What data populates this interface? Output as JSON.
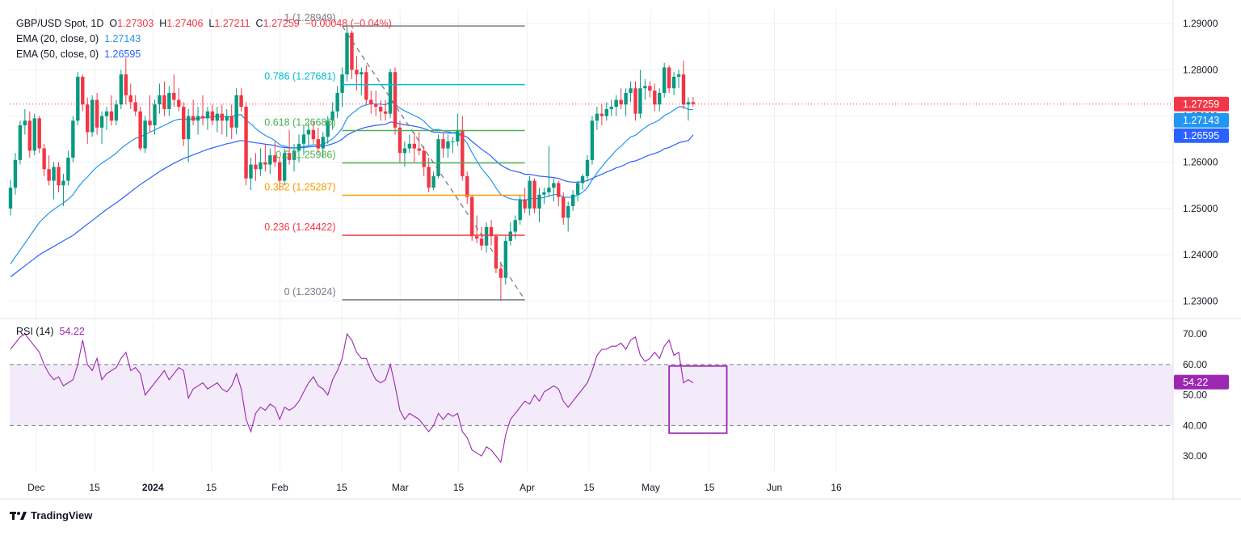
{
  "header": {
    "symbol": "GBP/USD Spot, 1D",
    "o_label": "O",
    "o": "1.27303",
    "h_label": "H",
    "h": "1.27406",
    "l_label": "L",
    "l": "1.27211",
    "c_label": "C",
    "c": "1.27259",
    "change": "−0.00048 (−0.04%)",
    "ema20_label": "EMA (20, close, 0)",
    "ema20": "1.27143",
    "ema50_label": "EMA (50, close, 0)",
    "ema50": "1.26595",
    "rsi_label": "RSI (14)",
    "rsi": "54.22"
  },
  "branding": {
    "name": "TradingView"
  },
  "colors": {
    "up": "#089981",
    "down": "#f23645",
    "ema20": "#2196f3",
    "ema50": "#2962ff",
    "rsi": "#9c27b0",
    "grid": "#eef0f3"
  },
  "chart_data": {
    "type": "candlestick",
    "title": "GBP/USD Spot, 1D",
    "price_axis": {
      "ticks": [
        "1.29000",
        "1.28000",
        "1.27000",
        "1.26000",
        "1.25000",
        "1.24000",
        "1.23000"
      ],
      "values": [
        1.29,
        1.28,
        1.27,
        1.26,
        1.25,
        1.24,
        1.23
      ],
      "ylim": [
        1.2262,
        1.293
      ]
    },
    "time_axis": {
      "labels": [
        "Dec",
        "15",
        "2024",
        "15",
        "Feb",
        "15",
        "Mar",
        "15",
        "Apr",
        "15",
        "May",
        "15",
        "Jun",
        "16"
      ]
    },
    "price_badges": [
      {
        "label": "1.27259",
        "value": 1.27259,
        "color": "#f23645"
      },
      {
        "label": "1.27143",
        "value": 1.27143,
        "color": "#2196f3"
      },
      {
        "label": "1.26595",
        "value": 1.26595,
        "color": "#2962ff"
      }
    ],
    "fibonacci": [
      {
        "label": "1 (1.28949)",
        "value": 1.28949,
        "color": "#787b86"
      },
      {
        "label": "0.786 (1.27681)",
        "value": 1.27681,
        "color": "#00bcd4"
      },
      {
        "label": "0.618 (1.26686)",
        "value": 1.26686,
        "color": "#4caf50"
      },
      {
        "label": "0.5 (1.25986)",
        "value": 1.25986,
        "color": "#4caf50"
      },
      {
        "label": "0.382 (1.25287)",
        "value": 1.25287,
        "color": "#ff9800"
      },
      {
        "label": "0.236 (1.24422)",
        "value": 1.24422,
        "color": "#f23645"
      },
      {
        "label": "0 (1.23024)",
        "value": 1.23024,
        "color": "#787b86"
      }
    ],
    "candles": [
      [
        1.25,
        1.2562,
        1.2485,
        1.2545
      ],
      [
        1.2545,
        1.262,
        1.253,
        1.2605
      ],
      [
        1.2605,
        1.269,
        1.2595,
        1.268
      ],
      [
        1.268,
        1.2715,
        1.266,
        1.269
      ],
      [
        1.269,
        1.271,
        1.261,
        1.2625
      ],
      [
        1.2625,
        1.2705,
        1.2615,
        1.2695
      ],
      [
        1.2695,
        1.27,
        1.262,
        1.263
      ],
      [
        1.263,
        1.264,
        1.257,
        1.2585
      ],
      [
        1.2585,
        1.2615,
        1.255,
        1.256
      ],
      [
        1.256,
        1.26,
        1.252,
        1.259
      ],
      [
        1.259,
        1.26,
        1.2535,
        1.255
      ],
      [
        1.255,
        1.2575,
        1.2505,
        1.256
      ],
      [
        1.256,
        1.2625,
        1.255,
        1.261
      ],
      [
        1.261,
        1.27,
        1.26,
        1.269
      ],
      [
        1.269,
        1.2795,
        1.268,
        1.2785
      ],
      [
        1.2785,
        1.279,
        1.271,
        1.2725
      ],
      [
        1.2725,
        1.274,
        1.264,
        1.2665
      ],
      [
        1.2665,
        1.2745,
        1.2655,
        1.2735
      ],
      [
        1.2735,
        1.275,
        1.266,
        1.2675
      ],
      [
        1.2675,
        1.271,
        1.264,
        1.27
      ],
      [
        1.27,
        1.272,
        1.267,
        1.271
      ],
      [
        1.271,
        1.2745,
        1.268,
        1.269
      ],
      [
        1.269,
        1.2735,
        1.268,
        1.2725
      ],
      [
        1.2725,
        1.28,
        1.2715,
        1.279
      ],
      [
        1.279,
        1.2825,
        1.2725,
        1.2745
      ],
      [
        1.2745,
        1.277,
        1.2715,
        1.273
      ],
      [
        1.273,
        1.2745,
        1.27,
        1.271
      ],
      [
        1.271,
        1.272,
        1.2625,
        1.263
      ],
      [
        1.263,
        1.27,
        1.262,
        1.269
      ],
      [
        1.269,
        1.2745,
        1.2665,
        1.268
      ],
      [
        1.268,
        1.2735,
        1.266,
        1.2725
      ],
      [
        1.2725,
        1.277,
        1.2705,
        1.2745
      ],
      [
        1.2745,
        1.2775,
        1.27,
        1.2715
      ],
      [
        1.2715,
        1.2765,
        1.27,
        1.275
      ],
      [
        1.275,
        1.279,
        1.272,
        1.2735
      ],
      [
        1.2735,
        1.276,
        1.271,
        1.272
      ],
      [
        1.272,
        1.273,
        1.2635,
        1.265
      ],
      [
        1.265,
        1.2715,
        1.26,
        1.27
      ],
      [
        1.27,
        1.2735,
        1.268,
        1.269
      ],
      [
        1.269,
        1.272,
        1.266,
        1.27
      ],
      [
        1.27,
        1.2745,
        1.268,
        1.2695
      ],
      [
        1.2695,
        1.272,
        1.267,
        1.271
      ],
      [
        1.271,
        1.2725,
        1.268,
        1.269
      ],
      [
        1.269,
        1.272,
        1.2665,
        1.2705
      ],
      [
        1.2705,
        1.2725,
        1.266,
        1.269
      ],
      [
        1.269,
        1.2715,
        1.2655,
        1.27
      ],
      [
        1.27,
        1.2725,
        1.265,
        1.2675
      ],
      [
        1.2675,
        1.276,
        1.266,
        1.2745
      ],
      [
        1.2745,
        1.276,
        1.271,
        1.272
      ],
      [
        1.272,
        1.273,
        1.255,
        1.2565
      ],
      [
        1.2565,
        1.261,
        1.254,
        1.2595
      ],
      [
        1.2595,
        1.262,
        1.256,
        1.2585
      ],
      [
        1.2585,
        1.263,
        1.257,
        1.26
      ],
      [
        1.26,
        1.264,
        1.258,
        1.2595
      ],
      [
        1.2595,
        1.263,
        1.2575,
        1.2615
      ],
      [
        1.2615,
        1.2645,
        1.259,
        1.26
      ],
      [
        1.26,
        1.261,
        1.254,
        1.256
      ],
      [
        1.256,
        1.263,
        1.255,
        1.262
      ],
      [
        1.262,
        1.267,
        1.2595,
        1.2605
      ],
      [
        1.2605,
        1.264,
        1.258,
        1.2625
      ],
      [
        1.2625,
        1.266,
        1.26,
        1.264
      ],
      [
        1.264,
        1.268,
        1.2615,
        1.266
      ],
      [
        1.266,
        1.2685,
        1.2635,
        1.267
      ],
      [
        1.267,
        1.269,
        1.264,
        1.265
      ],
      [
        1.265,
        1.2675,
        1.262,
        1.263
      ],
      [
        1.263,
        1.2665,
        1.261,
        1.2655
      ],
      [
        1.2655,
        1.27,
        1.264,
        1.269
      ],
      [
        1.269,
        1.273,
        1.267,
        1.271
      ],
      [
        1.271,
        1.2765,
        1.2695,
        1.275
      ],
      [
        1.275,
        1.2805,
        1.272,
        1.279
      ],
      [
        1.279,
        1.2895,
        1.2775,
        1.288
      ],
      [
        1.288,
        1.2885,
        1.278,
        1.28
      ],
      [
        1.28,
        1.283,
        1.2755,
        1.279
      ],
      [
        1.279,
        1.2805,
        1.2745,
        1.2795
      ],
      [
        1.2795,
        1.281,
        1.2725,
        1.2735
      ],
      [
        1.2735,
        1.2755,
        1.2705,
        1.2725
      ],
      [
        1.2725,
        1.2755,
        1.27,
        1.272
      ],
      [
        1.272,
        1.2735,
        1.269,
        1.271
      ],
      [
        1.271,
        1.2735,
        1.269,
        1.2705
      ],
      [
        1.2705,
        1.2802,
        1.2695,
        1.2795
      ],
      [
        1.2795,
        1.2805,
        1.266,
        1.2675
      ],
      [
        1.2675,
        1.269,
        1.26,
        1.262
      ],
      [
        1.262,
        1.2645,
        1.259,
        1.263
      ],
      [
        1.263,
        1.266,
        1.262,
        1.264
      ],
      [
        1.264,
        1.2665,
        1.26,
        1.263
      ],
      [
        1.263,
        1.2665,
        1.2615,
        1.2625
      ],
      [
        1.2625,
        1.2635,
        1.257,
        1.259
      ],
      [
        1.259,
        1.261,
        1.2535,
        1.2545
      ],
      [
        1.2545,
        1.258,
        1.254,
        1.257
      ],
      [
        1.257,
        1.266,
        1.2565,
        1.265
      ],
      [
        1.265,
        1.2665,
        1.261,
        1.263
      ],
      [
        1.263,
        1.266,
        1.261,
        1.2645
      ],
      [
        1.2645,
        1.2655,
        1.262,
        1.2645
      ],
      [
        1.2645,
        1.2705,
        1.2635,
        1.267
      ],
      [
        1.267,
        1.27,
        1.256,
        1.257
      ],
      [
        1.257,
        1.258,
        1.251,
        1.2525
      ],
      [
        1.2525,
        1.253,
        1.243,
        1.244
      ],
      [
        1.244,
        1.2485,
        1.2425,
        1.2435
      ],
      [
        1.2435,
        1.246,
        1.241,
        1.242
      ],
      [
        1.242,
        1.247,
        1.2405,
        1.246
      ],
      [
        1.246,
        1.2475,
        1.242,
        1.244
      ],
      [
        1.244,
        1.2445,
        1.236,
        1.237
      ],
      [
        1.237,
        1.2385,
        1.23,
        1.235
      ],
      [
        1.235,
        1.244,
        1.2335,
        1.243
      ],
      [
        1.243,
        1.247,
        1.242,
        1.245
      ],
      [
        1.245,
        1.2485,
        1.2435,
        1.2475
      ],
      [
        1.2475,
        1.253,
        1.2465,
        1.252
      ],
      [
        1.252,
        1.2545,
        1.249,
        1.25
      ],
      [
        1.25,
        1.257,
        1.2485,
        1.256
      ],
      [
        1.256,
        1.2565,
        1.249,
        1.25
      ],
      [
        1.25,
        1.2545,
        1.247,
        1.253
      ],
      [
        1.253,
        1.2545,
        1.251,
        1.2535
      ],
      [
        1.2535,
        1.2635,
        1.2525,
        1.2545
      ],
      [
        1.2545,
        1.2565,
        1.2515,
        1.2555
      ],
      [
        1.2555,
        1.256,
        1.2505,
        1.2525
      ],
      [
        1.2525,
        1.2535,
        1.2465,
        1.248
      ],
      [
        1.248,
        1.2515,
        1.245,
        1.2505
      ],
      [
        1.2505,
        1.254,
        1.2495,
        1.253
      ],
      [
        1.253,
        1.256,
        1.2515,
        1.2555
      ],
      [
        1.2555,
        1.2575,
        1.254,
        1.257
      ],
      [
        1.257,
        1.2615,
        1.256,
        1.2605
      ],
      [
        1.2605,
        1.27,
        1.2595,
        1.269
      ],
      [
        1.269,
        1.272,
        1.267,
        1.2705
      ],
      [
        1.2705,
        1.2725,
        1.268,
        1.27
      ],
      [
        1.27,
        1.273,
        1.269,
        1.2715
      ],
      [
        1.2715,
        1.2735,
        1.27,
        1.272
      ],
      [
        1.272,
        1.2745,
        1.27,
        1.2735
      ],
      [
        1.2735,
        1.276,
        1.2715,
        1.2725
      ],
      [
        1.2725,
        1.276,
        1.27,
        1.275
      ],
      [
        1.275,
        1.2775,
        1.273,
        1.276
      ],
      [
        1.276,
        1.2775,
        1.269,
        1.2705
      ],
      [
        1.2705,
        1.28,
        1.2695,
        1.276
      ],
      [
        1.276,
        1.278,
        1.2735,
        1.2765
      ],
      [
        1.2765,
        1.2775,
        1.274,
        1.2755
      ],
      [
        1.2755,
        1.277,
        1.271,
        1.2725
      ],
      [
        1.2725,
        1.276,
        1.271,
        1.275
      ],
      [
        1.275,
        1.2815,
        1.274,
        1.2805
      ],
      [
        1.2805,
        1.281,
        1.275,
        1.276
      ],
      [
        1.276,
        1.2795,
        1.2745,
        1.2785
      ],
      [
        1.2785,
        1.28,
        1.276,
        1.279
      ],
      [
        1.279,
        1.282,
        1.2715,
        1.2725
      ],
      [
        1.2725,
        1.274,
        1.269,
        1.273
      ],
      [
        1.273,
        1.2741,
        1.2721,
        1.2726
      ]
    ],
    "ema20": [
      1.238,
      1.2395,
      1.241,
      1.2425,
      1.244,
      1.2455,
      1.247,
      1.248,
      1.249,
      1.2498,
      1.2505,
      1.2512,
      1.252,
      1.253,
      1.2545,
      1.2558,
      1.2568,
      1.258,
      1.259,
      1.2598,
      1.2605,
      1.2612,
      1.262,
      1.263,
      1.2638,
      1.2645,
      1.2652,
      1.2655,
      1.266,
      1.2665,
      1.267,
      1.2675,
      1.268,
      1.2685,
      1.269,
      1.2693,
      1.2693,
      1.2693,
      1.2694,
      1.2695,
      1.2696,
      1.2697,
      1.2698,
      1.2699,
      1.2699,
      1.2699,
      1.2699,
      1.2702,
      1.2703,
      1.2691,
      1.2683,
      1.2673,
      1.2665,
      1.2658,
      1.2653,
      1.2647,
      1.2638,
      1.2635,
      1.2632,
      1.2631,
      1.2632,
      1.2634,
      1.2636,
      1.2638,
      1.2637,
      1.2639,
      1.2644,
      1.2651,
      1.2661,
      1.2674,
      1.2695,
      1.2705,
      1.2713,
      1.2721,
      1.2724,
      1.2727,
      1.2726,
      1.2726,
      1.2724,
      1.2731,
      1.2726,
      1.2717,
      1.2711,
      1.2706,
      1.2701,
      1.2696,
      1.2689,
      1.2678,
      1.267,
      1.2671,
      1.2668,
      1.2666,
      1.2664,
      1.2665,
      1.2654,
      1.2641,
      1.2621,
      1.2603,
      1.2586,
      1.2574,
      1.2561,
      1.2544,
      1.253,
      1.2525,
      1.2521,
      1.2519,
      1.2519,
      1.2517,
      1.2522,
      1.2521,
      1.2522,
      1.2524,
      1.2527,
      1.253,
      1.253,
      1.2525,
      1.2524,
      1.2525,
      1.2529,
      1.2535,
      1.2545,
      1.2562,
      1.2577,
      1.259,
      1.2603,
      1.2614,
      1.2626,
      1.2635,
      1.2645,
      1.2655,
      1.2658,
      1.2667,
      1.2675,
      1.2682,
      1.2686,
      1.2692,
      1.2701,
      1.2706,
      1.2713,
      1.272,
      1.272,
      1.2714,
      1.2714
    ],
    "ema50": [
      1.2352,
      1.236,
      1.2368,
      1.2376,
      1.2384,
      1.2392,
      1.24,
      1.2406,
      1.2412,
      1.2418,
      1.2424,
      1.243,
      1.2436,
      1.2442,
      1.245,
      1.2458,
      1.2466,
      1.2474,
      1.2482,
      1.249,
      1.2498,
      1.2505,
      1.2512,
      1.252,
      1.2528,
      1.2536,
      1.2544,
      1.2552,
      1.2559,
      1.2566,
      1.2573,
      1.258,
      1.2586,
      1.2592,
      1.2598,
      1.2603,
      1.2608,
      1.2612,
      1.2616,
      1.262,
      1.2624,
      1.2628,
      1.2631,
      1.2634,
      1.2637,
      1.264,
      1.2642,
      1.2645,
      1.2647,
      1.2645,
      1.2644,
      1.2642,
      1.2641,
      1.2639,
      1.2638,
      1.2636,
      1.2633,
      1.2632,
      1.2631,
      1.2631,
      1.2631,
      1.2632,
      1.2633,
      1.2634,
      1.2634,
      1.2635,
      1.2637,
      1.264,
      1.2644,
      1.265,
      1.2659,
      1.2664,
      1.2669,
      1.2673,
      1.2676,
      1.2678,
      1.268,
      1.2681,
      1.2682,
      1.2687,
      1.2686,
      1.2683,
      1.2681,
      1.268,
      1.2678,
      1.2676,
      1.2673,
      1.2669,
      1.2665,
      1.2665,
      1.2664,
      1.2663,
      1.2663,
      1.2663,
      1.2659,
      1.2654,
      1.2645,
      1.2637,
      1.2628,
      1.2621,
      1.2613,
      1.2603,
      1.2594,
      1.2588,
      1.2583,
      1.258,
      1.2578,
      1.2574,
      1.2574,
      1.2572,
      1.257,
      1.2569,
      1.2568,
      1.2567,
      1.2565,
      1.2561,
      1.2558,
      1.2557,
      1.2557,
      1.2558,
      1.256,
      1.2565,
      1.257,
      1.2574,
      1.2579,
      1.2583,
      1.2588,
      1.2591,
      1.2596,
      1.2601,
      1.2603,
      1.2607,
      1.2612,
      1.2616,
      1.2619,
      1.2623,
      1.2629,
      1.2632,
      1.2637,
      1.2642,
      1.2645,
      1.2647,
      1.2659
    ],
    "rsi": {
      "ylim": [
        25,
        74
      ],
      "ticks": [
        70,
        60,
        50,
        40,
        30
      ],
      "tick_labels": [
        "70.00",
        "60.00",
        "50.00",
        "40.00",
        "30.00"
      ],
      "overbought": 60,
      "oversold": 40,
      "current": 54.22,
      "values": [
        65,
        67,
        69,
        70,
        68,
        66,
        64,
        60,
        57,
        55,
        56,
        53,
        54,
        55,
        60,
        68,
        60,
        58,
        62,
        55,
        57,
        58,
        59,
        62,
        64,
        58,
        59,
        57,
        50,
        52,
        54,
        56,
        58,
        55,
        57,
        59,
        58,
        49,
        52,
        53,
        54,
        52,
        53,
        54,
        52,
        51,
        53,
        57,
        52,
        42,
        38,
        44,
        46,
        45,
        47,
        46,
        42,
        46,
        45,
        46,
        48,
        51,
        54,
        56,
        53,
        52,
        50,
        55,
        58,
        62,
        70,
        68,
        64,
        62,
        62,
        58,
        55,
        54,
        55,
        60,
        53,
        45,
        42,
        44,
        43,
        42,
        40,
        38,
        40,
        44,
        42,
        44,
        43,
        44,
        38,
        36,
        32,
        31,
        30,
        33,
        32,
        30,
        28,
        37,
        42,
        44,
        46,
        48,
        47,
        50,
        48,
        51,
        52,
        53,
        52,
        48,
        46,
        48,
        50,
        52,
        54,
        58,
        63,
        65,
        65,
        66,
        66,
        67,
        65,
        68,
        69,
        63,
        61,
        62,
        64,
        62,
        66,
        68,
        63,
        64,
        54,
        55,
        54
      ]
    },
    "highlight_box": {
      "rsi_top": 59.5,
      "rsi_bottom": 37.5,
      "from_bar": 137,
      "to_bar": 149
    }
  }
}
